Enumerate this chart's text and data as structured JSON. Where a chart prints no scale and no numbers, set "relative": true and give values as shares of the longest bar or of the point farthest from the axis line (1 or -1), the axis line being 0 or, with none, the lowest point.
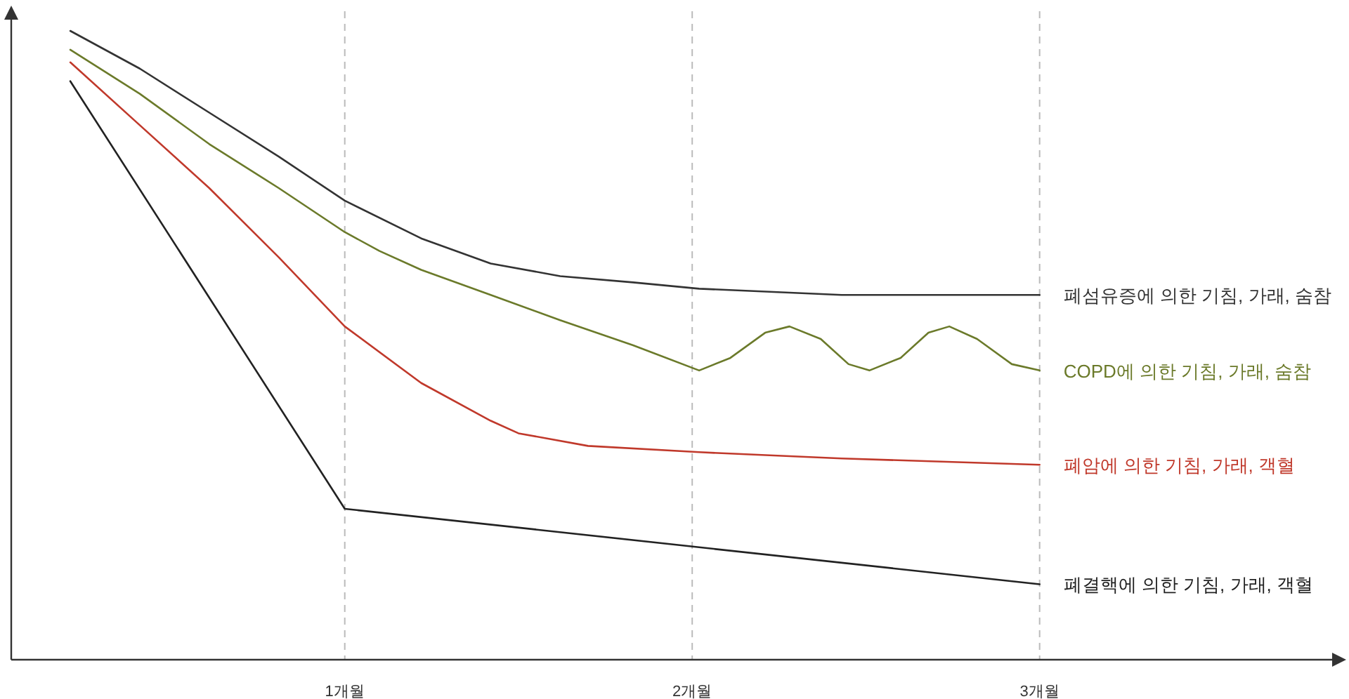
{
  "chart_data": {
    "type": "line",
    "relative": true,
    "grid": "x",
    "xlim": [
      0.04,
      3.85
    ],
    "xticks": [
      {
        "value": 1,
        "label": "1개월"
      },
      {
        "value": 2,
        "label": "2개월"
      },
      {
        "value": 3,
        "label": "3개월"
      }
    ],
    "series": [
      {
        "name": "폐섬유증에 의한 기침, 가래, 숨참",
        "color": "#333333",
        "x": [
          0.21,
          0.41,
          0.61,
          0.81,
          1.0,
          1.22,
          1.42,
          1.62,
          1.83,
          2.02,
          2.43,
          3.0
        ],
        "values": [
          1.0,
          0.94,
          0.87,
          0.8,
          0.73,
          0.67,
          0.63,
          0.61,
          0.6,
          0.59,
          0.58,
          0.58
        ]
      },
      {
        "name": "COPD에 의한 기침, 가래, 숨참",
        "color": "#6b7a2a",
        "x": [
          0.21,
          0.41,
          0.61,
          0.81,
          1.0,
          1.1,
          1.22,
          1.42,
          1.62,
          1.83,
          2.02,
          2.11,
          2.21,
          2.28,
          2.37,
          2.45,
          2.51,
          2.6,
          2.68,
          2.74,
          2.82,
          2.92,
          3.0
        ],
        "values": [
          0.97,
          0.9,
          0.82,
          0.75,
          0.68,
          0.65,
          0.62,
          0.58,
          0.54,
          0.5,
          0.46,
          0.48,
          0.52,
          0.53,
          0.51,
          0.47,
          0.46,
          0.48,
          0.52,
          0.53,
          0.51,
          0.47,
          0.46
        ]
      },
      {
        "name": "폐암에 의한 기침, 가래, 객혈",
        "color": "#c0392b",
        "x": [
          0.21,
          0.41,
          0.61,
          0.81,
          1.0,
          1.22,
          1.42,
          1.5,
          1.7,
          2.02,
          2.43,
          3.0
        ],
        "values": [
          0.95,
          0.85,
          0.75,
          0.64,
          0.53,
          0.44,
          0.38,
          0.36,
          0.34,
          0.33,
          0.32,
          0.31
        ]
      },
      {
        "name": "폐결핵에 의한 기침, 가래, 객혈",
        "color": "#222222",
        "x": [
          0.21,
          1.0,
          3.0
        ],
        "values": [
          0.92,
          0.24,
          0.12
        ]
      }
    ]
  }
}
